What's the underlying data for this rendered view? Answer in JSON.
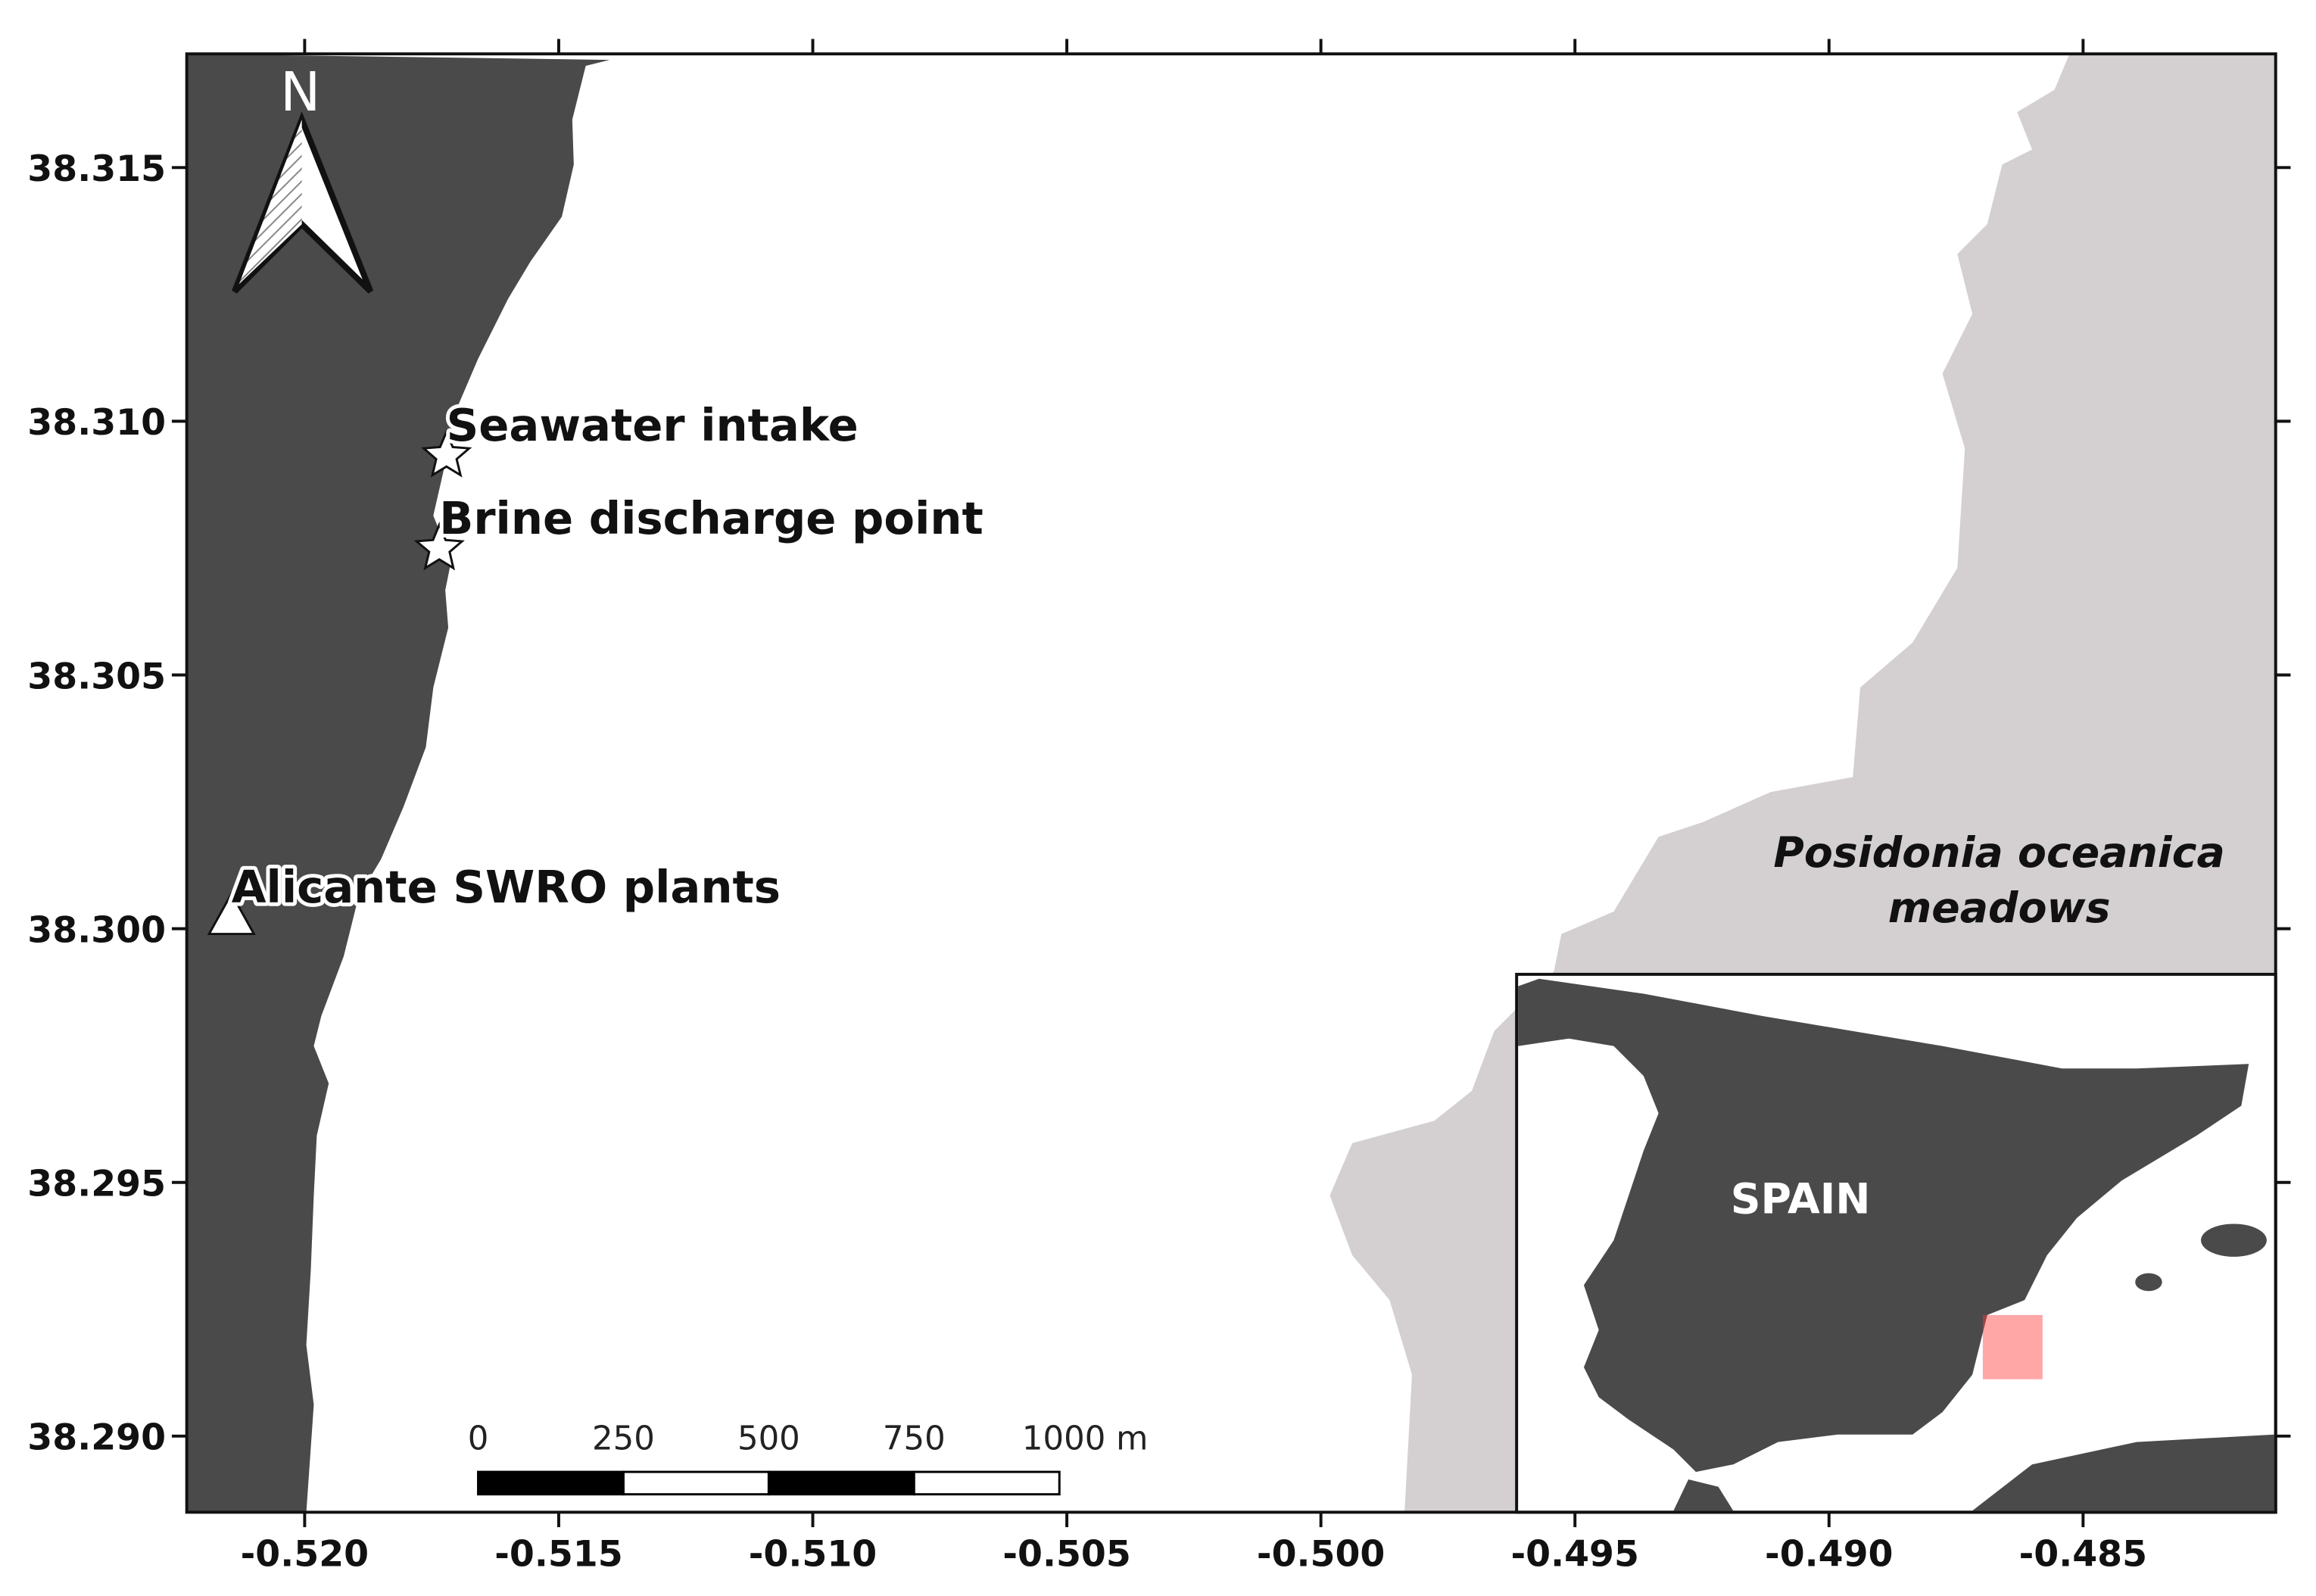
{
  "map": {
    "xlim": [
      -0.52232,
      -0.48121
    ],
    "ylim": [
      38.2885,
      38.31724
    ],
    "xticks": [
      {
        "value": -0.52,
        "label": "-0.520"
      },
      {
        "value": -0.515,
        "label": "-0.515"
      },
      {
        "value": -0.51,
        "label": "-0.510"
      },
      {
        "value": -0.505,
        "label": "-0.505"
      },
      {
        "value": -0.5,
        "label": "-0.500"
      },
      {
        "value": -0.495,
        "label": "-0.495"
      },
      {
        "value": -0.49,
        "label": "-0.490"
      },
      {
        "value": -0.485,
        "label": "-0.485"
      }
    ],
    "yticks": [
      {
        "value": 38.29,
        "label": "38.290"
      },
      38.295,
      {
        "value": 38.3,
        "label": "38.300"
      },
      38.305,
      {
        "value": 38.31,
        "label": "38.310"
      },
      38.315
    ],
    "markers": [
      {
        "label": "Seawater intake",
        "shape": "star",
        "x": -0.51721,
        "y": 38.30932
      },
      {
        "label": "Brine discharge point",
        "shape": "star",
        "x": -0.51735,
        "y": 38.30749
      },
      {
        "label": "Alicante SWRO plants",
        "shape": "triangle",
        "x": -0.52144,
        "y": 38.30022
      }
    ],
    "north": "N",
    "meadows_label": [
      "Posidonia oceanica",
      "meadows"
    ],
    "inset_label": "SPAIN",
    "scale_bar": [
      "0",
      "250",
      "500",
      "750",
      "1000 m"
    ]
  }
}
